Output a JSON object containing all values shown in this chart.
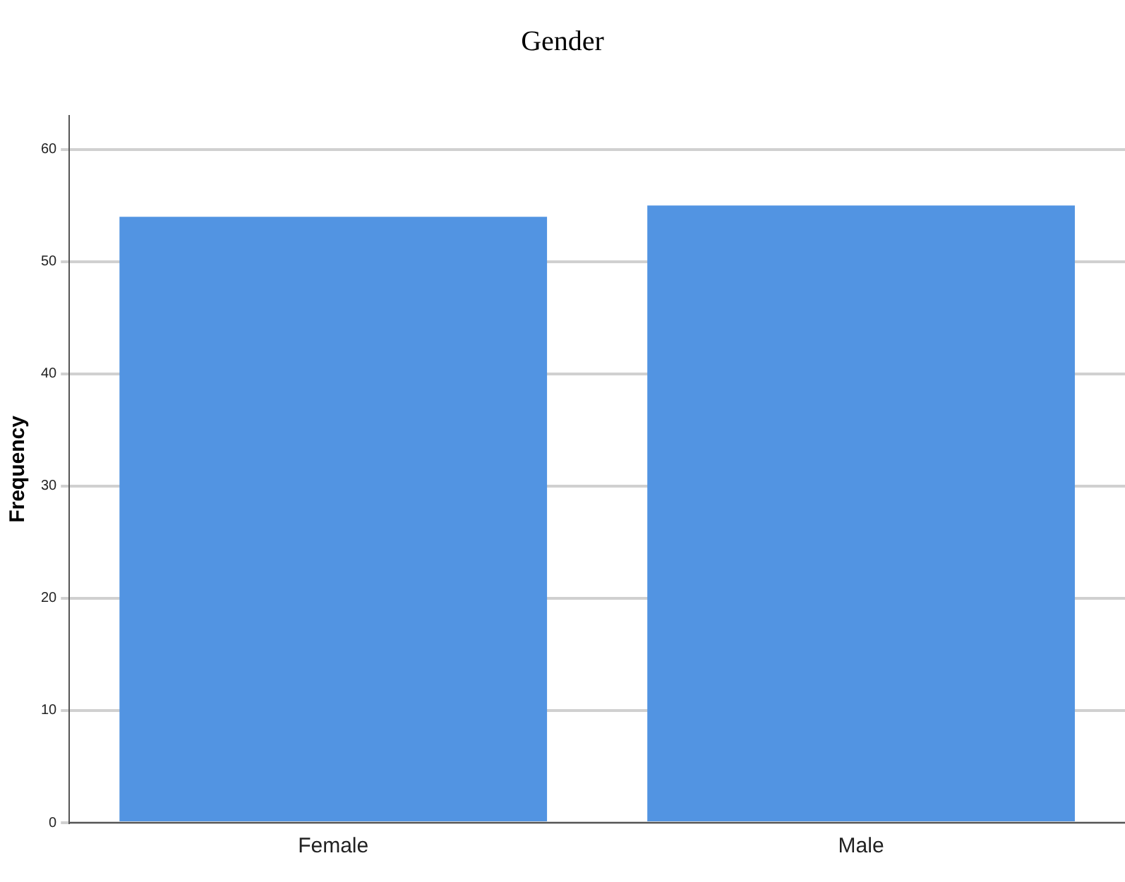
{
  "chart_data": {
    "type": "bar",
    "title": "Gender",
    "ylabel": "Frequency",
    "categories": [
      "Female",
      "Male"
    ],
    "values": [
      54,
      55
    ],
    "color": "#5294e2",
    "ylim": [
      0,
      63
    ],
    "yticks": [
      0,
      10,
      20,
      30,
      40,
      50,
      60
    ],
    "grid": "y"
  }
}
